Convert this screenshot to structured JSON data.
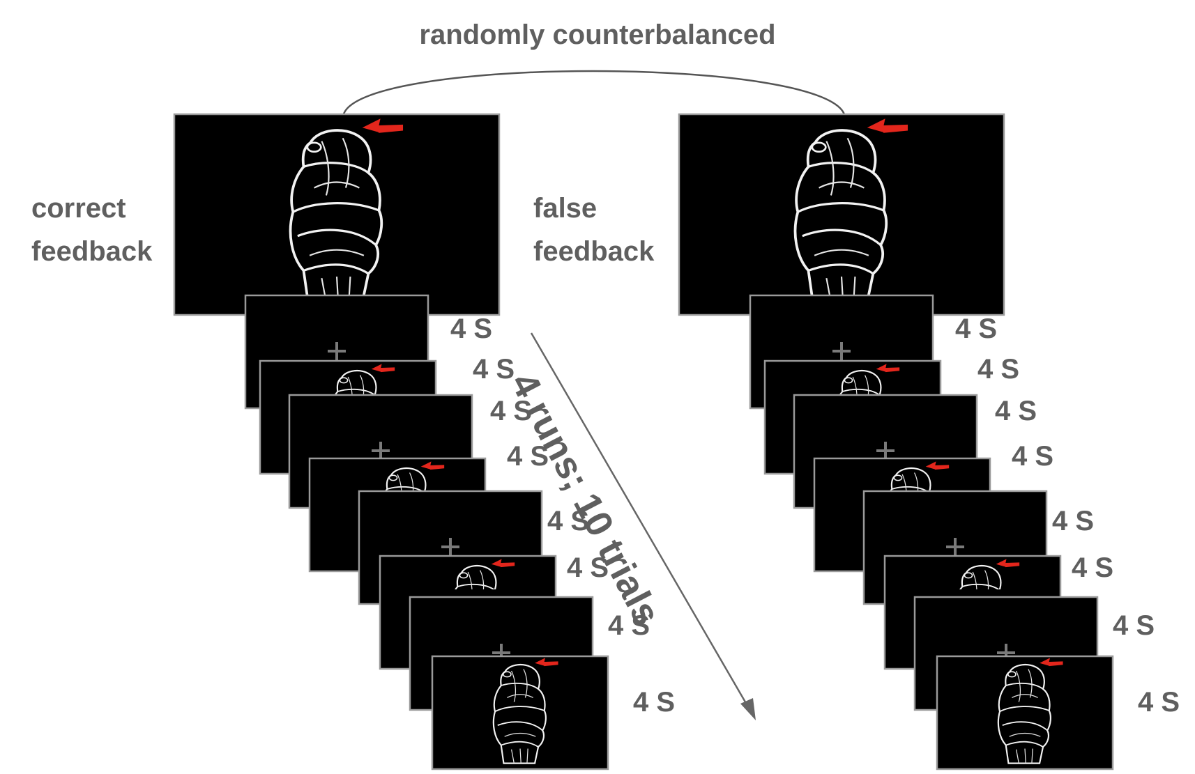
{
  "header": {
    "counterbalance_label": "randomly counterbalanced"
  },
  "conditions": [
    {
      "label_line1": "correct",
      "label_line2": "feedback"
    },
    {
      "label_line1": "false",
      "label_line2": "feedback"
    }
  ],
  "durations": [
    "4 S",
    "4 S",
    "4 S",
    "4 S",
    "4 S",
    "4 S",
    "4 S",
    "4 S"
  ],
  "sequence": [
    "fixation",
    "hand",
    "fixation",
    "hand",
    "fixation",
    "hand",
    "fixation",
    "hand"
  ],
  "design_label": "4 runs; 10 trials",
  "colors": {
    "screen": "#000000",
    "frame": "#9a9a9a",
    "text": "#5f5f5f",
    "arrow_red": "#e3261c",
    "fixation": "#7a7a7a"
  },
  "icons": [
    "hand-stimulus-icon",
    "red-arrow-icon",
    "fixation-cross-icon"
  ]
}
